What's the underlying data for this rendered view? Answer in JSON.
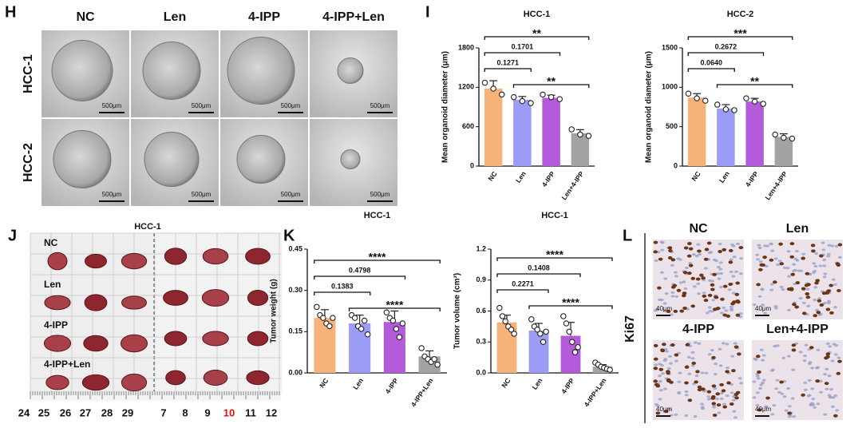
{
  "panel_h": {
    "letter": "H",
    "columns": [
      "NC",
      "Len",
      "4-IPP",
      "4-IPP+Len"
    ],
    "rows": [
      "HCC-1",
      "HCC-2"
    ],
    "scale_labels": [
      "500μm",
      "500μm",
      "500μm",
      "500μm",
      "500μm",
      "500μm",
      "500μm",
      "500μm"
    ]
  },
  "panel_i": {
    "letter": "I"
  },
  "panel_j": {
    "letter": "J",
    "title": "HCC-1",
    "rows": [
      "NC",
      "Len",
      "4-IPP",
      "4-IPP+Len"
    ],
    "ruler_labels": [
      "24",
      "25",
      "26",
      "27",
      "28",
      "29",
      "7",
      "8",
      "9",
      "10",
      "11",
      "12"
    ],
    "highlight_label": "10",
    "highlight_color": "#e01010"
  },
  "panel_k": {
    "letter": "K"
  },
  "panel_l": {
    "letter": "L",
    "stain": "Ki67",
    "labels": [
      "NC",
      "Len",
      "4-IPP",
      "Len+4-IPP"
    ],
    "scale_labels": [
      "40μm",
      "40μm",
      "40μm",
      "40μm"
    ]
  },
  "chart_data": [
    {
      "type": "bar",
      "title": "HCC-1",
      "y_label": "Mean organoid diameter (μm)",
      "categories": [
        "NC",
        "Len",
        "4-IPP",
        "Len+4-IPP"
      ],
      "colors": [
        "#f7b27a",
        "#9c9cf6",
        "#b45bdc",
        "#a3a3a3"
      ],
      "values": [
        1180,
        1010,
        1040,
        500
      ],
      "errors": [
        120,
        50,
        40,
        55
      ],
      "points": [
        [
          1270,
          1180,
          1090
        ],
        [
          1050,
          990,
          960
        ],
        [
          1090,
          1050,
          1020
        ],
        [
          560,
          480,
          460
        ]
      ],
      "ylim": [
        0,
        1800
      ],
      "yticks": [
        0,
        600,
        1200,
        1800
      ],
      "comparisons": [
        {
          "pair": [
            "NC",
            "Len+4-IPP"
          ],
          "label": "**"
        },
        {
          "pair": [
            "NC",
            "4-IPP"
          ],
          "label": "0.1701"
        },
        {
          "pair": [
            "NC",
            "Len"
          ],
          "label": "0.1271"
        },
        {
          "pair": [
            "Len",
            "Len+4-IPP"
          ],
          "label": "**"
        }
      ]
    },
    {
      "type": "bar",
      "title": "HCC-2",
      "y_label": "Mean organoid diameter (μm)",
      "categories": [
        "NC",
        "Len",
        "4-IPP",
        "Len+4-IPP"
      ],
      "colors": [
        "#f7b27a",
        "#9c9cf6",
        "#b45bdc",
        "#a3a3a3"
      ],
      "values": [
        870,
        730,
        820,
        370
      ],
      "errors": [
        50,
        50,
        40,
        40
      ],
      "points": [
        [
          920,
          860,
          830
        ],
        [
          780,
          720,
          710
        ],
        [
          860,
          820,
          790
        ],
        [
          400,
          360,
          350
        ]
      ],
      "ylim": [
        0,
        1500
      ],
      "yticks": [
        0,
        500,
        1000,
        1500
      ],
      "comparisons": [
        {
          "pair": [
            "NC",
            "Len+4-IPP"
          ],
          "label": "***"
        },
        {
          "pair": [
            "NC",
            "4-IPP"
          ],
          "label": "0.2672"
        },
        {
          "pair": [
            "NC",
            "Len"
          ],
          "label": "0.0640"
        },
        {
          "pair": [
            "Len",
            "Len+4-IPP"
          ],
          "label": "**"
        }
      ]
    },
    {
      "type": "bar",
      "title": "HCC-1",
      "y_label": "Tumor weight (g)",
      "categories": [
        "NC",
        "Len",
        "4-IPP",
        "4-IPP+Len"
      ],
      "colors": [
        "#f7b27a",
        "#9c9cf6",
        "#b45bdc",
        "#a3a3a3"
      ],
      "values": [
        0.2,
        0.18,
        0.185,
        0.06
      ],
      "errors": [
        0.03,
        0.03,
        0.04,
        0.02
      ],
      "points": [
        [
          0.24,
          0.21,
          0.2,
          0.18,
          0.17,
          0.2
        ],
        [
          0.21,
          0.2,
          0.17,
          0.16,
          0.19,
          0.14
        ],
        [
          0.22,
          0.2,
          0.19,
          0.16,
          0.13,
          0.18
        ],
        [
          0.09,
          0.06,
          0.05,
          0.04,
          0.05,
          0.03
        ]
      ],
      "ylim": [
        0,
        0.45
      ],
      "yticks": [
        {
          "value": 0,
          "label": "0.00"
        },
        0.15,
        {
          "value": 0.3,
          "label": "0.30"
        },
        0.45
      ],
      "comparisons": [
        {
          "pair": [
            "NC",
            "4-IPP+Len"
          ],
          "label": "****"
        },
        {
          "pair": [
            "NC",
            "4-IPP"
          ],
          "label": "0.4798"
        },
        {
          "pair": [
            "NC",
            "Len"
          ],
          "label": "0.1383"
        },
        {
          "pair": [
            "Len",
            "4-IPP+Len"
          ],
          "label": "****"
        }
      ]
    },
    {
      "type": "bar",
      "title": "HCC-1",
      "y_label": "Tumor volume (cm³)",
      "categories": [
        "NC",
        "Len",
        "4-IPP",
        "4-IPP+Len"
      ],
      "colors": [
        "#f7b27a",
        "#9c9cf6",
        "#b45bdc",
        "#a3a3a3"
      ],
      "values": [
        0.49,
        0.41,
        0.36,
        0.06
      ],
      "errors": [
        0.07,
        0.07,
        0.13,
        0.02
      ],
      "points": [
        [
          0.63,
          0.55,
          0.5,
          0.45,
          0.42,
          0.38
        ],
        [
          0.52,
          0.45,
          0.42,
          0.38,
          0.3,
          0.4
        ],
        [
          0.55,
          0.48,
          0.4,
          0.3,
          0.2,
          0.25
        ],
        [
          0.1,
          0.08,
          0.06,
          0.05,
          0.04,
          0.03
        ]
      ],
      "ylim": [
        0,
        1.2
      ],
      "yticks": [
        {
          "value": 0,
          "label": "0.0"
        },
        0.3,
        0.6,
        0.9,
        1.2
      ],
      "comparisons": [
        {
          "pair": [
            "NC",
            "4-IPP+Len"
          ],
          "label": "****"
        },
        {
          "pair": [
            "NC",
            "4-IPP"
          ],
          "label": "0.1408"
        },
        {
          "pair": [
            "NC",
            "Len"
          ],
          "label": "0.2271"
        },
        {
          "pair": [
            "Len",
            "4-IPP+Len"
          ],
          "label": "****"
        }
      ]
    }
  ]
}
